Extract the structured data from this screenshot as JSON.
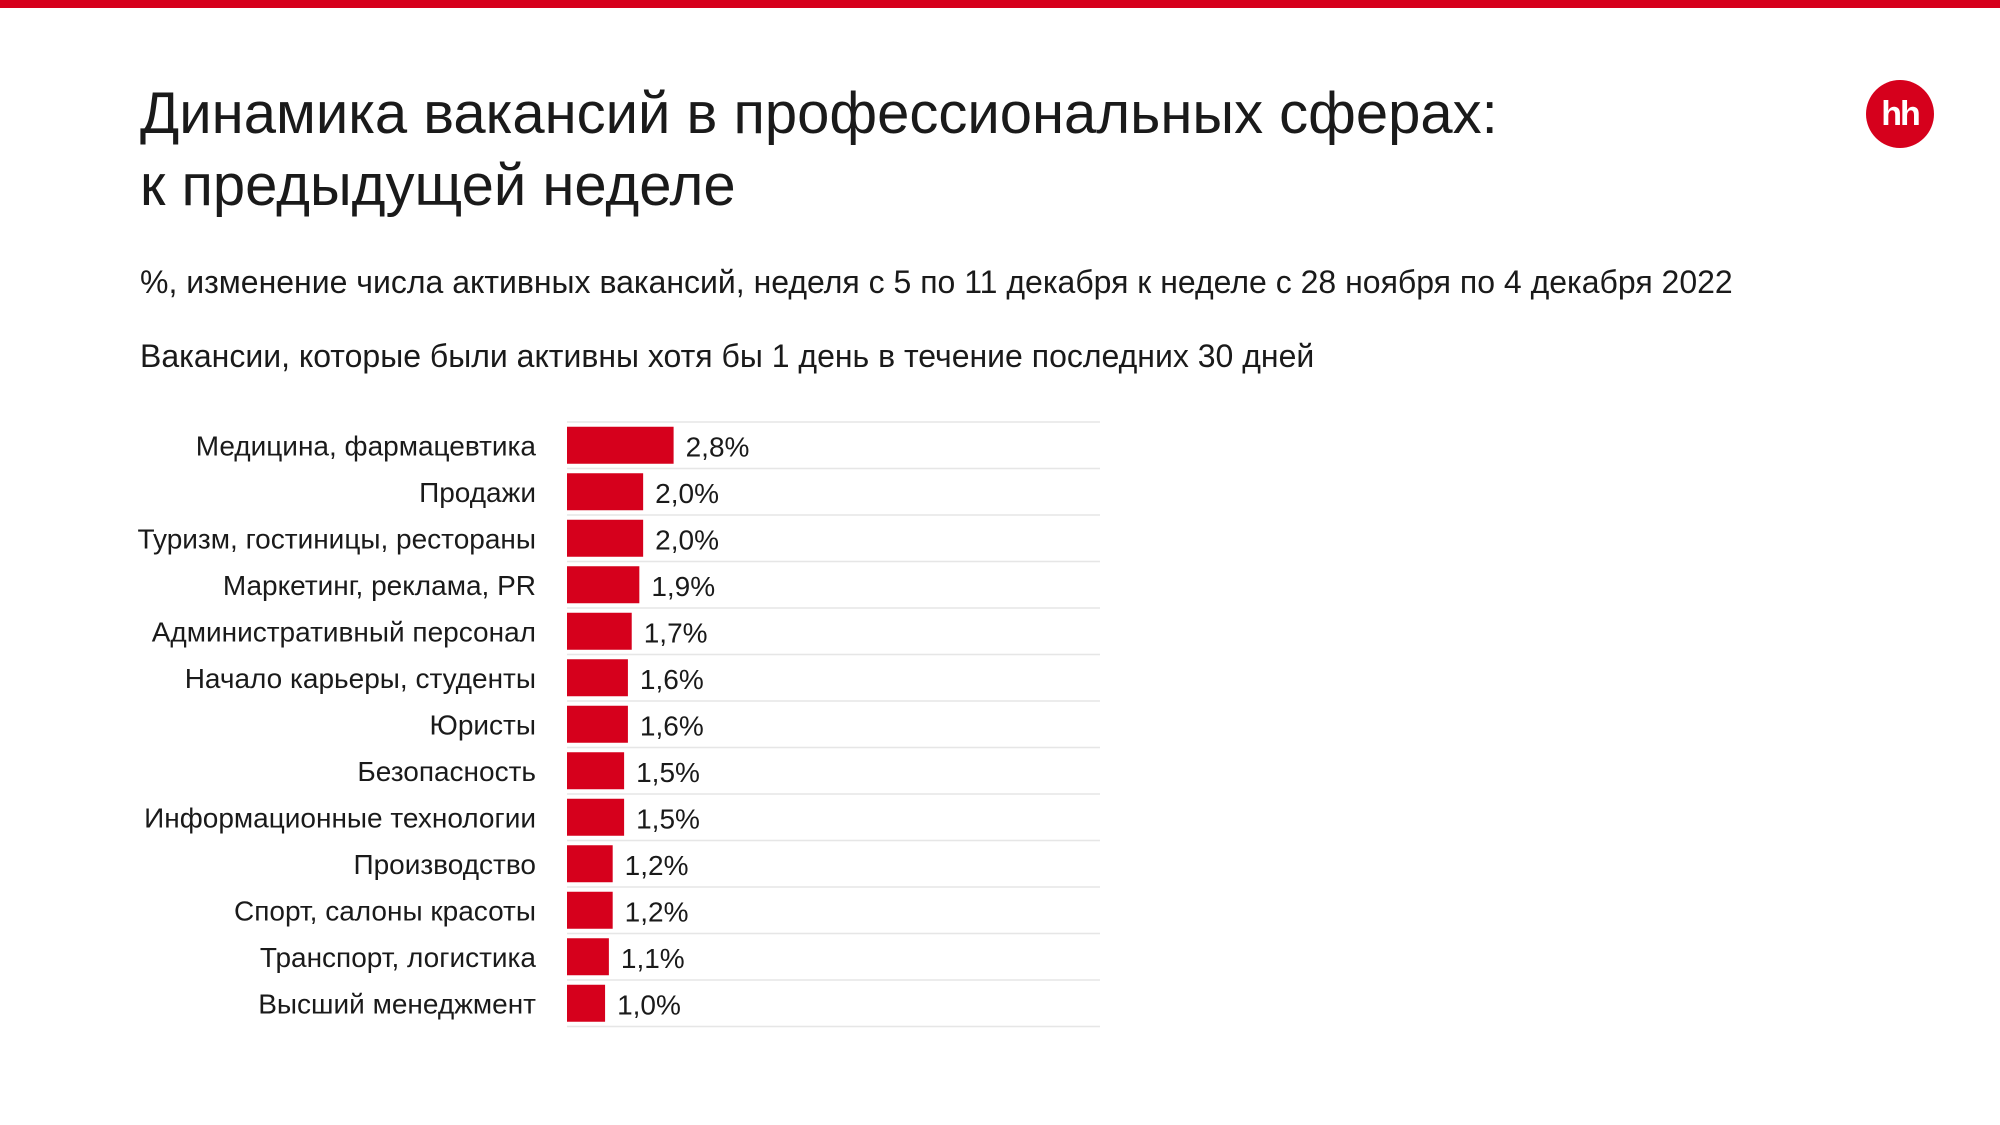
{
  "title_line1": "Динамика вакансий в профессиональных сферах:",
  "title_line2": "к предыдущей неделе",
  "subtitle": "%, изменение числа активных вакансий, неделя с 5 по 11 декабря к неделе с 28 ноября по 4 декабря 2022",
  "note": "Вакансии, которые были активны хотя бы 1 день в течение последних 30 дней",
  "logo_text": "hh",
  "colors": {
    "accent": "#d6001c",
    "grid": "#e6e6e6",
    "text": "#1a1a1a"
  },
  "chart_data": {
    "type": "bar",
    "orientation": "horizontal",
    "categories": [
      "Медицина, фармацевтика",
      "Продажи",
      "Туризм, гостиницы, рестораны",
      "Маркетинг, реклама, PR",
      "Административный персонал",
      "Начало карьеры, студенты",
      "Юристы",
      "Безопасность",
      "Информационные технологии",
      "Производство",
      "Спорт, салоны красоты",
      "Транспорт, логистика",
      "Высший менеджмент"
    ],
    "values": [
      2.8,
      2.0,
      2.0,
      1.9,
      1.7,
      1.6,
      1.6,
      1.5,
      1.5,
      1.2,
      1.2,
      1.1,
      1.0
    ],
    "labels": [
      "2,8%",
      "2,0%",
      "2,0%",
      "1,9%",
      "1,7%",
      "1,6%",
      "1,6%",
      "1,5%",
      "1,5%",
      "1,2%",
      "1,2%",
      "1,1%",
      "1,0%"
    ],
    "xlim": [
      0,
      14
    ],
    "grid": "horizontal separators",
    "legend": "none"
  }
}
